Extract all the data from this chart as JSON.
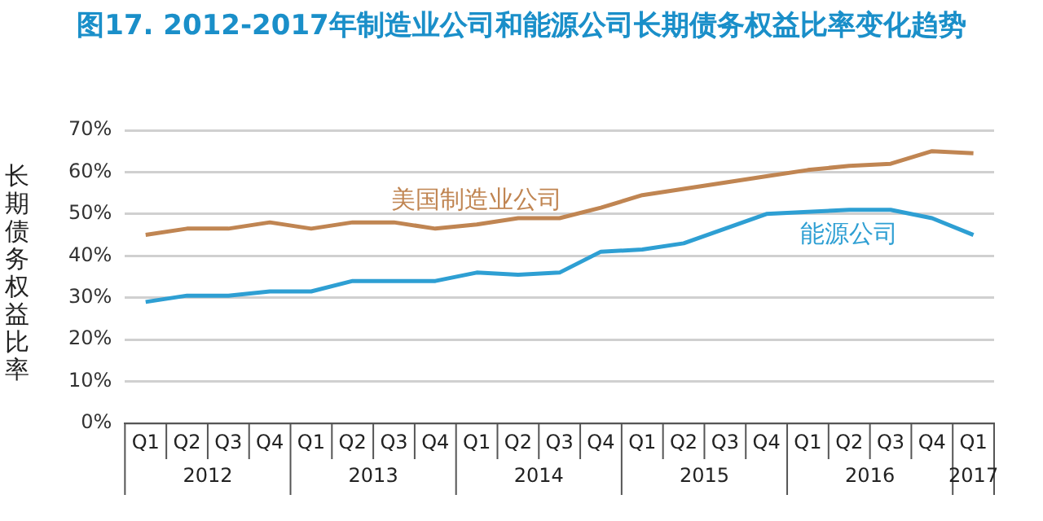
{
  "chart_data": {
    "type": "line",
    "title": "图17. 2012-2017年制造业公司和能源公司长期债务权益比率变化趋势",
    "ylabel": "长期债务权益比率",
    "categories": [
      "Q1",
      "Q2",
      "Q3",
      "Q4",
      "Q1",
      "Q2",
      "Q3",
      "Q4",
      "Q1",
      "Q2",
      "Q3",
      "Q4",
      "Q1",
      "Q2",
      "Q3",
      "Q4",
      "Q1",
      "Q2",
      "Q3",
      "Q4",
      "Q1"
    ],
    "annotations": [
      "2012",
      "2013",
      "2014",
      "2015",
      "2016",
      "2017"
    ],
    "series": [
      {
        "name": "美国制造业公司",
        "color": "#c08552",
        "values": [
          45,
          46.5,
          46.5,
          48,
          46.5,
          48,
          48,
          46.5,
          47.5,
          49,
          49,
          51.5,
          54.5,
          56,
          57.5,
          59,
          60.5,
          61.5,
          62,
          65,
          64.5
        ]
      },
      {
        "name": "能源公司",
        "color": "#2e9fd3",
        "values": [
          29,
          30.5,
          30.5,
          31.5,
          31.5,
          34,
          34,
          34,
          36,
          35.5,
          36,
          41,
          41.5,
          43,
          46.5,
          50,
          50.5,
          51,
          51,
          49,
          45
        ]
      }
    ],
    "ylim": [
      0,
      70
    ],
    "yticks": [
      {
        "value": 0,
        "label": "0%"
      },
      {
        "value": 10,
        "label": "10%"
      },
      {
        "value": 20,
        "label": "20%"
      },
      {
        "value": 30,
        "label": "30%"
      },
      {
        "value": 40,
        "label": "40%"
      },
      {
        "value": 50,
        "label": "50%"
      },
      {
        "value": 60,
        "label": "60%"
      },
      {
        "value": 70,
        "label": "70%"
      }
    ],
    "grid": "y",
    "marker": "none"
  }
}
